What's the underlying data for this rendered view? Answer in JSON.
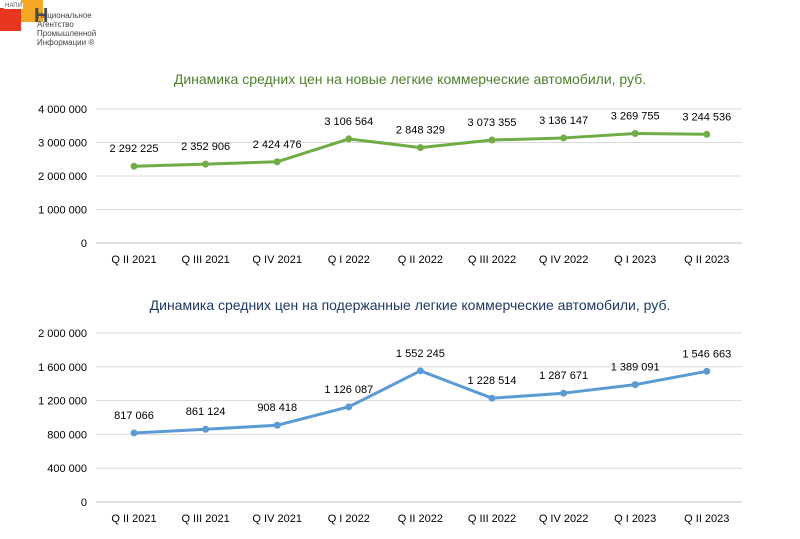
{
  "logo": {
    "abbr": "НАПИ",
    "letter": "Н",
    "lines": [
      "Национальное",
      "Агентство",
      "Промышленной",
      "Информации ®"
    ]
  },
  "chart_data": [
    {
      "type": "line",
      "title": "Динамика средних цен на новые легкие коммерческие автомобили, руб.",
      "categories": [
        "Q II 2021",
        "Q III 2021",
        "Q IV 2021",
        "Q I 2022",
        "Q II 2022",
        "Q III 2022",
        "Q IV 2022",
        "Q I 2023",
        "Q II 2023"
      ],
      "series": [
        {
          "values": [
            2292225,
            2352906,
            2424476,
            3106564,
            2848329,
            3073355,
            3136147,
            3269755,
            3244536
          ],
          "labels": [
            "2 292 225",
            "2 352 906",
            "2 424 476",
            "3 106 564",
            "2 848 329",
            "3 073 355",
            "3 136 147",
            "3 269 755",
            "3 244 536"
          ]
        }
      ],
      "yticks": [
        0,
        1000000,
        2000000,
        3000000,
        4000000
      ],
      "ytick_labels": [
        "0",
        "1 000 000",
        "2 000 000",
        "3 000 000",
        "4 000 000"
      ],
      "ylim": [
        0,
        4000000
      ],
      "grid": true,
      "color": "#70ad47"
    },
    {
      "type": "line",
      "title": "Динамика средних цен на подержанные легкие коммерческие автомобили, руб.",
      "categories": [
        "Q II 2021",
        "Q III 2021",
        "Q IV 2021",
        "Q I 2022",
        "Q II 2022",
        "Q III 2022",
        "Q IV 2022",
        "Q I 2023",
        "Q II 2023"
      ],
      "series": [
        {
          "values": [
            817066,
            861124,
            908418,
            1126087,
            1552245,
            1228514,
            1287671,
            1389091,
            1546663
          ],
          "labels": [
            "817 066",
            "861 124",
            "908 418",
            "1 126 087",
            "1 552 245",
            "1 228 514",
            "1 287 671",
            "1 389 091",
            "1 546 663"
          ]
        }
      ],
      "yticks": [
        0,
        400000,
        800000,
        1200000,
        1600000,
        2000000
      ],
      "ytick_labels": [
        "0",
        "400 000",
        "800 000",
        "1 200 000",
        "1 600 000",
        "2 000 000"
      ],
      "ylim": [
        0,
        2000000
      ],
      "grid": true,
      "color": "#5b9bd5"
    }
  ]
}
